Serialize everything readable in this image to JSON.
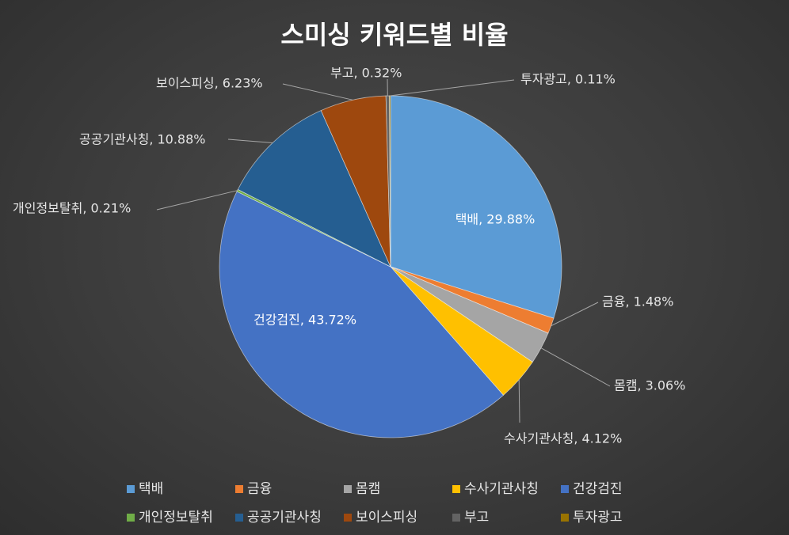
{
  "chart_data": {
    "type": "pie",
    "title": "스미싱 키워드별 비율",
    "slices": [
      {
        "name": "택배",
        "value": 29.88,
        "label": "택배, 29.88%",
        "color": "#5b9bd5"
      },
      {
        "name": "금융",
        "value": 1.48,
        "label": "금융, 1.48%",
        "color": "#ed7d31"
      },
      {
        "name": "몸캠",
        "value": 3.06,
        "label": "몸캠, 3.06%",
        "color": "#a5a5a5"
      },
      {
        "name": "수사기관사칭",
        "value": 4.12,
        "label": "수사기관사칭, 4.12%",
        "color": "#ffc000"
      },
      {
        "name": "건강검진",
        "value": 43.72,
        "label": "건강검진, 43.72%",
        "color": "#4472c4"
      },
      {
        "name": "개인정보탈취",
        "value": 0.21,
        "label": "개인정보탈취, 0.21%",
        "color": "#70ad47"
      },
      {
        "name": "공공기관사칭",
        "value": 10.88,
        "label": "공공기관사칭, 10.88%",
        "color": "#255e91"
      },
      {
        "name": "보이스피싱",
        "value": 6.23,
        "label": "보이스피싱, 6.23%",
        "color": "#9e480e"
      },
      {
        "name": "부고",
        "value": 0.32,
        "label": "부고, 0.32%",
        "color": "#636363"
      },
      {
        "name": "투자광고",
        "value": 0.11,
        "label": "투자광고, 0.11%",
        "color": "#997300"
      }
    ],
    "legend": {
      "position": "bottom"
    }
  }
}
